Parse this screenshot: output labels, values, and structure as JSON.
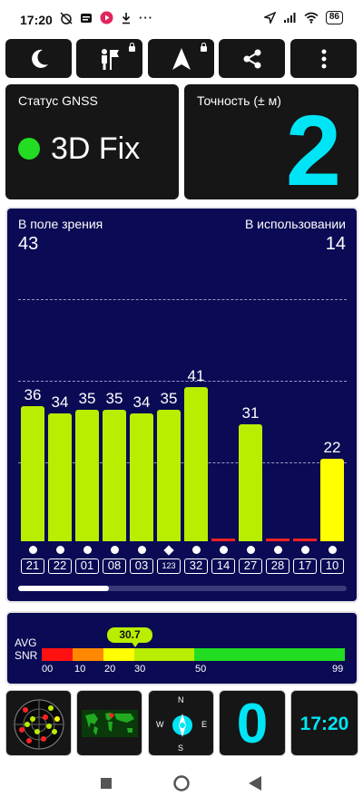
{
  "status_bar": {
    "time": "17:20",
    "battery": "86",
    "more_indicator": "···"
  },
  "toolbar": {
    "buttons": [
      "night-mode",
      "map-lock",
      "navigate-lock",
      "share",
      "more-menu"
    ]
  },
  "gnss_status": {
    "label": "Статус GNSS",
    "fix": "3D Fix",
    "fix_color": "#22dd22"
  },
  "accuracy": {
    "label": "Точность (± м)",
    "value": "2",
    "color": "#00e5f5"
  },
  "sky": {
    "in_view_label": "В поле зрения",
    "in_view_count": "43",
    "in_use_label": "В использовании",
    "in_use_count": "14"
  },
  "chart_data": {
    "type": "bar",
    "title": "",
    "categories": [
      "21",
      "22",
      "01",
      "08",
      "03",
      "123",
      "32",
      "14",
      "27",
      "28",
      "17",
      "10"
    ],
    "values": [
      36,
      34,
      35,
      35,
      34,
      35,
      41,
      0,
      31,
      0,
      0,
      22
    ],
    "value_labels": [
      "36",
      "34",
      "35",
      "35",
      "34",
      "35",
      "41",
      "",
      "31",
      "",
      "",
      "22"
    ],
    "used_markers": [
      "dot",
      "dot",
      "dot",
      "dot",
      "dot",
      "diamond",
      "dot",
      "dot",
      "dot",
      "dot",
      "dot",
      "dot"
    ],
    "bar_colors": [
      "#b9ee00",
      "#b9ee00",
      "#b9ee00",
      "#b9ee00",
      "#b9ee00",
      "#b9ee00",
      "#b9ee00",
      "#ff2222",
      "#b9ee00",
      "#ff2222",
      "#ff2222",
      "#ffff00"
    ],
    "ylim": [
      0,
      60
    ],
    "grid": true
  },
  "snr": {
    "label_line1": "AVG",
    "label_line2": "SNR",
    "avg_value": "30.7",
    "avg_fraction": 0.31,
    "scale_ticks": [
      "00",
      "10",
      "20",
      "30",
      "50",
      "99"
    ],
    "scale_colors": [
      "#ff1111",
      "#ff8800",
      "#ffff00",
      "#b9ee00",
      "#22dd22"
    ]
  },
  "bottom": {
    "sats_count": "0",
    "clock": "17:20",
    "compass_letters": {
      "n": "N",
      "s": "S",
      "w": "W",
      "e": "E"
    }
  }
}
